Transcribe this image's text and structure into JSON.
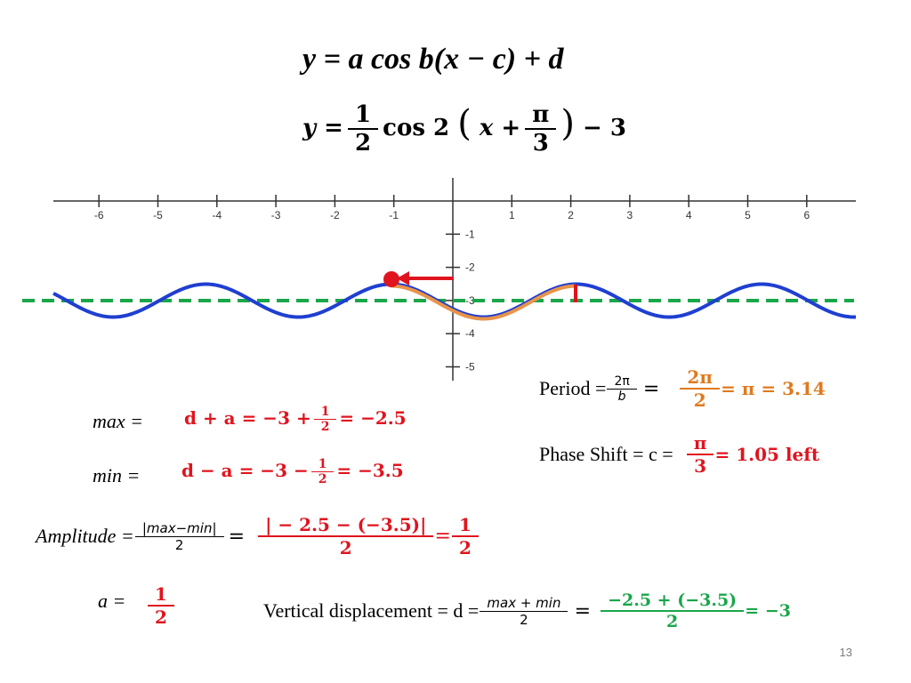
{
  "formula_general": "y = a cos b(x − c) + d",
  "formula_specific": {
    "lhs": "y =",
    "coef_num": "1",
    "coef_den": "2",
    "cos": "cos 2",
    "paren_open": "(",
    "x_plus": "x +",
    "shift_num": "π",
    "shift_den": "3",
    "paren_close": ")",
    "tail": "− 3"
  },
  "graph": {
    "x_tick_labels": [
      "-6",
      "-5",
      "-4",
      "-3",
      "-2",
      "-1",
      "1",
      "2",
      "3",
      "4",
      "5",
      "6"
    ],
    "y_tick_labels": [
      "-1",
      "-2",
      "-3",
      "-4",
      "-5"
    ],
    "colors": {
      "curve": "#1f3fd1",
      "midline": "#1aa64a",
      "highlight": "#e8944a",
      "arrow": "#e0141e"
    }
  },
  "max_row": {
    "label": "max =",
    "lhs": "d + a = −3 +",
    "frac_num": "1",
    "frac_den": "2",
    "rhs": "= −2.5"
  },
  "min_row": {
    "label": "min =",
    "lhs": "d − a = −3 −",
    "frac_num": "1",
    "frac_den": "2",
    "rhs": "= −3.5"
  },
  "amplitude": {
    "label": "Amplitude =",
    "formula_num": "|max−min|",
    "formula_den": "2",
    "eq": "=",
    "value_num": "| − 2.5 − (−3.5)|",
    "value_den": "2",
    "result_eq": "=",
    "result_num": "1",
    "result_den": "2"
  },
  "a_row": {
    "label": "a =",
    "num": "1",
    "den": "2"
  },
  "period": {
    "label": "Period =",
    "formula_num": "2π",
    "formula_den": "b",
    "eq": "=",
    "value_num": "2π",
    "value_den": "2",
    "result": "= π = 3.14"
  },
  "phase_shift": {
    "label": "Phase Shift = c =",
    "num": "π",
    "den": "3",
    "result": "= 1.05 left"
  },
  "vertical": {
    "label": "Vertical displacement = d =",
    "formula_num": "max + min",
    "formula_den": "2",
    "eq": "=",
    "value_num": "−2.5 + (−3.5)",
    "value_den": "2",
    "result": "= −3"
  },
  "page_number": "13"
}
